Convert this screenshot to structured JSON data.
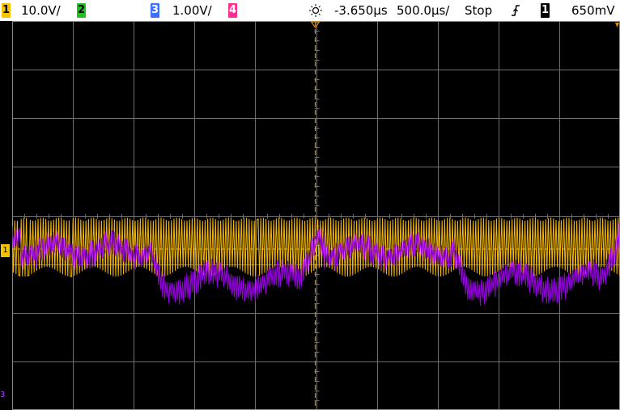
{
  "status_bar": {
    "ch1": {
      "number": "1",
      "scale": "10.0V/",
      "color": "#f5c400"
    },
    "ch2": {
      "number": "2",
      "color": "#22c022"
    },
    "ch3": {
      "number": "3",
      "scale": "1.00V/",
      "color": "#3f6fff"
    },
    "ch4": {
      "number": "4",
      "color": "#ff2f8f"
    },
    "delay": "-3.650µs",
    "timebase": "500.0µs/",
    "run_state": "Stop",
    "trigger_source": "1",
    "trigger_level": "650mV"
  },
  "markers": {
    "ch1_ground": "1",
    "ch3_ground": "3"
  },
  "colors": {
    "ch1_trace": "#f5b800",
    "ch3_trace": "#9a00e6",
    "grid": "#6e6e6e",
    "trigger_marker": "#e88a00"
  }
}
